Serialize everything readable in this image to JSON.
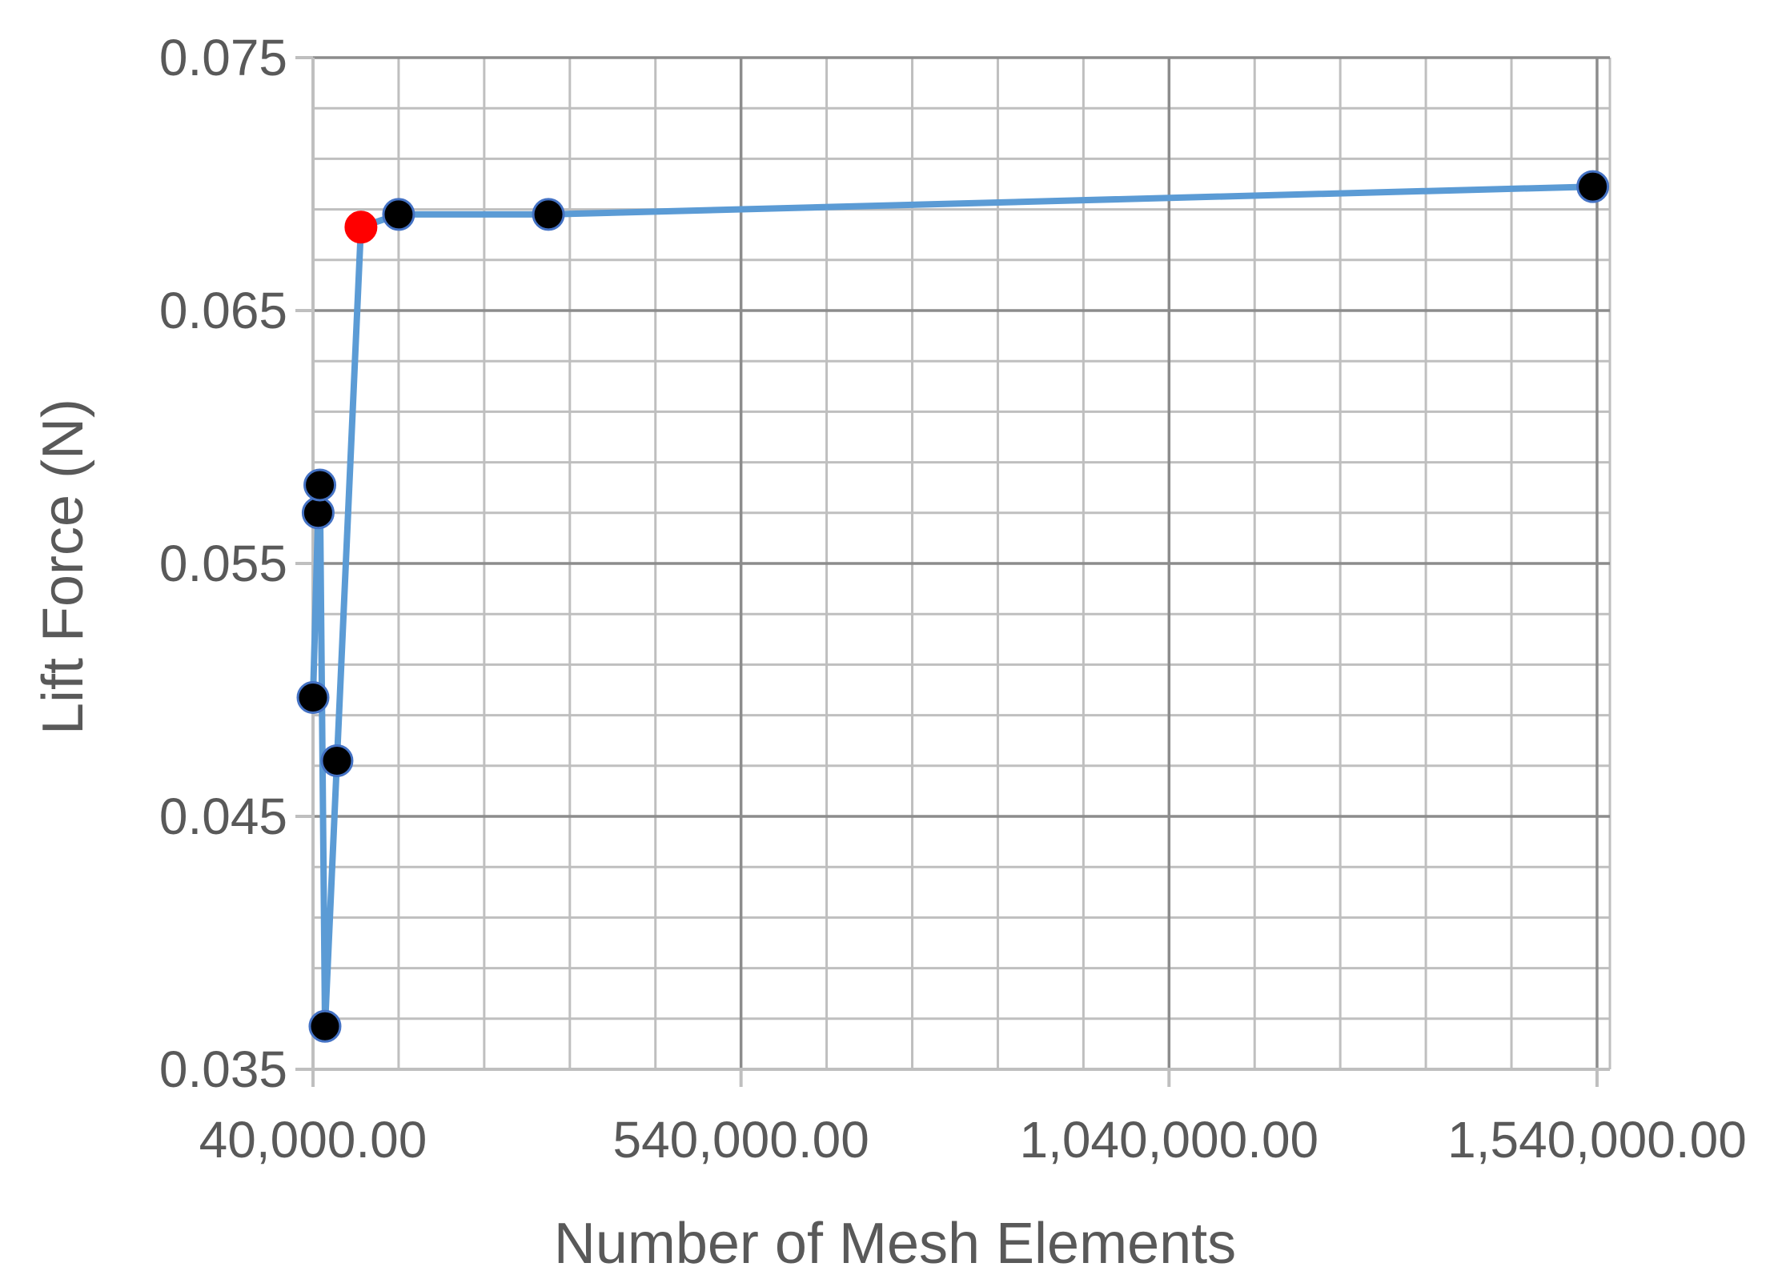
{
  "chart_data": {
    "type": "line",
    "title": "",
    "xlabel": "Number of Mesh Elements",
    "ylabel": "Lift Force (N)",
    "xlim": [
      40000,
      1555000
    ],
    "ylim": [
      0.035,
      0.075
    ],
    "x_major_step": 500000,
    "x_minor_step": 100000,
    "y_major_step": 0.01,
    "y_minor_step": 0.002,
    "x_tick_labels": [
      "40,000.00",
      "540,000.00",
      "1,040,000.00",
      "1,540,000.00"
    ],
    "y_tick_labels": [
      "0.035",
      "0.045",
      "0.055",
      "0.065",
      "0.075"
    ],
    "grid": true,
    "legend": false,
    "colors": {
      "line": "#5b9bd5",
      "marker": "#000000",
      "marker_edge": "#4472c4",
      "highlight": "#ff0000",
      "grid_major": "#8c8c8c",
      "grid_minor": "#bfbfbf",
      "text": "#595959"
    },
    "series": [
      {
        "x": [
          40000,
          46000,
          48000,
          54000,
          68000,
          96000,
          140000,
          315000,
          1535000
        ],
        "y": [
          0.0497,
          0.057,
          0.0581,
          0.0367,
          0.0472,
          0.0683,
          0.0688,
          0.0688,
          0.0699
        ],
        "highlight_index": 5
      }
    ]
  }
}
